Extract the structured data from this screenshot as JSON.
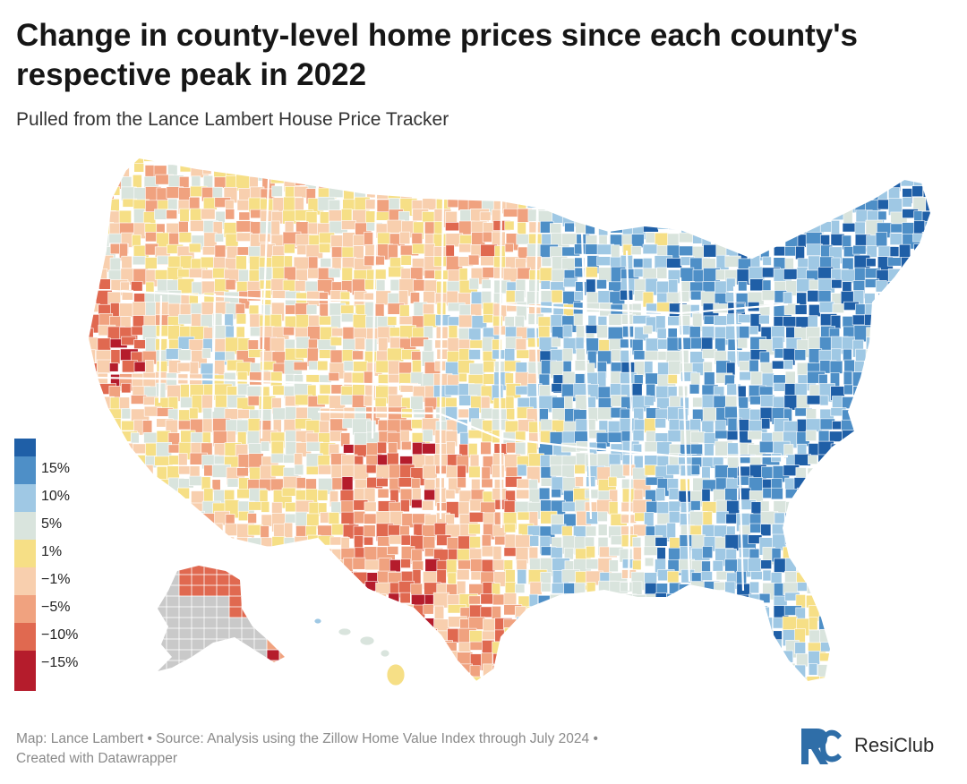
{
  "header": {
    "title": "Change in county-level home prices since each county's respective peak in 2022",
    "subtitle": "Pulled from the Lance Lambert House Price Tracker"
  },
  "legend": {
    "stops": [
      {
        "label": "15%",
        "color": "#1f5fa7"
      },
      {
        "label": "10%",
        "color": "#4e8fc7"
      },
      {
        "label": "5%",
        "color": "#9fc8e4"
      },
      {
        "label": "1%",
        "color": "#d9e4dd"
      },
      {
        "label": "−1%",
        "color": "#f6df86"
      },
      {
        "label": "−5%",
        "color": "#f8cfae"
      },
      {
        "label": "−10%",
        "color": "#f0a27f"
      },
      {
        "label": "−15%",
        "color": "#e06950"
      }
    ],
    "bottom_color": "#b51c2c",
    "top_color": "#1f5fa7"
  },
  "map": {
    "no_data_color": "#c9c9c9",
    "border_color": "#ffffff"
  },
  "footer": {
    "line1": "Map: Lance Lambert • Source: Analysis using the Zillow Home Value Index through July 2024 •",
    "line2": "Created with Datawrapper"
  },
  "brand": {
    "name": "ResiClub",
    "logo_color": "#2f6ea8"
  }
}
